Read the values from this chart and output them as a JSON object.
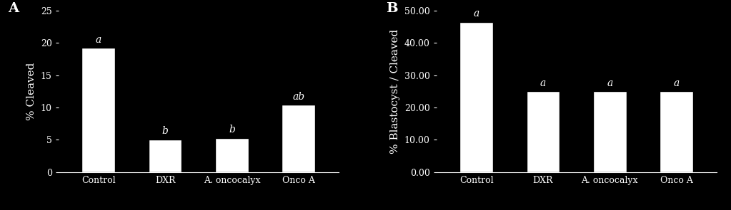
{
  "panel_A": {
    "label": "A",
    "categories": [
      "Control",
      "DXR",
      "A. oncocalyx",
      "Onco A"
    ],
    "values": [
      19.2,
      5.1,
      5.3,
      10.4
    ],
    "significance": [
      "a",
      "b",
      "b",
      "ab"
    ],
    "ylabel": "% Cleaved",
    "ylim": [
      0,
      25
    ],
    "yticks": [
      0,
      5,
      10,
      15,
      20,
      25
    ]
  },
  "panel_B": {
    "label": "B",
    "categories": [
      "Control",
      "DXR",
      "A. oncocalyx",
      "Onco A"
    ],
    "values": [
      46.5,
      25.0,
      25.0,
      25.0
    ],
    "significance": [
      "a",
      "a",
      "a",
      "a"
    ],
    "ylabel": "% Blastocyst / Cleaved",
    "ylim": [
      0,
      50
    ],
    "yticks": [
      0.0,
      10.0,
      20.0,
      30.0,
      40.0,
      50.0
    ]
  },
  "bar_color": "#ffffff",
  "bar_edgecolor": "#000000",
  "background_color": "#000000",
  "text_color": "#ffffff",
  "axis_color": "#ffffff",
  "font_family": "serif",
  "bar_width": 0.5,
  "label_fontsize": 11,
  "tick_fontsize": 9,
  "sig_fontsize": 10,
  "panel_label_fontsize": 14
}
